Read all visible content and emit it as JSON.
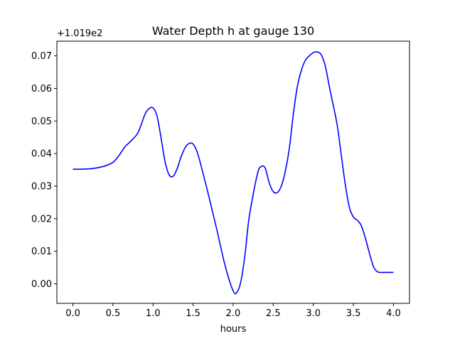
{
  "chart_data": {
    "type": "line",
    "title": "Water Depth h at gauge 130",
    "xlabel": "hours",
    "ylabel": "",
    "offset_text": "+1.019e2",
    "xlim": [
      -0.2,
      4.2
    ],
    "ylim": [
      -0.006,
      0.0745
    ],
    "x_ticks": [
      0.0,
      0.5,
      1.0,
      1.5,
      2.0,
      2.5,
      3.0,
      3.5,
      4.0
    ],
    "x_tick_labels": [
      "0.0",
      "0.5",
      "1.0",
      "1.5",
      "2.0",
      "2.5",
      "3.0",
      "3.5",
      "4.0"
    ],
    "y_ticks": [
      0.0,
      0.01,
      0.02,
      0.03,
      0.04,
      0.05,
      0.06,
      0.07
    ],
    "y_tick_labels": [
      "0.00",
      "0.01",
      "0.02",
      "0.03",
      "0.04",
      "0.05",
      "0.06",
      "0.07"
    ],
    "grid": false,
    "series": [
      {
        "color": "#0000ff",
        "x": [
          0.0,
          0.1,
          0.2,
          0.3,
          0.4,
          0.5,
          0.55,
          0.6,
          0.65,
          0.7,
          0.8,
          0.85,
          0.9,
          0.95,
          1.0,
          1.05,
          1.1,
          1.15,
          1.2,
          1.25,
          1.3,
          1.35,
          1.4,
          1.45,
          1.5,
          1.55,
          1.6,
          1.7,
          1.8,
          1.9,
          2.0,
          2.05,
          2.1,
          2.15,
          2.2,
          2.3,
          2.35,
          2.4,
          2.45,
          2.5,
          2.55,
          2.6,
          2.65,
          2.7,
          2.75,
          2.8,
          2.85,
          2.9,
          2.95,
          3.0,
          3.05,
          3.1,
          3.15,
          3.2,
          3.25,
          3.3,
          3.35,
          3.4,
          3.45,
          3.5,
          3.55,
          3.6,
          3.65,
          3.7,
          3.75,
          3.8,
          3.85,
          3.9,
          3.95,
          4.0
        ],
        "y": [
          0.0352,
          0.0352,
          0.0353,
          0.0356,
          0.0362,
          0.0373,
          0.0386,
          0.0403,
          0.0421,
          0.0433,
          0.0459,
          0.0487,
          0.0521,
          0.0538,
          0.054,
          0.0515,
          0.0448,
          0.0375,
          0.0335,
          0.033,
          0.0353,
          0.039,
          0.0418,
          0.0431,
          0.0429,
          0.0405,
          0.0362,
          0.0265,
          0.0162,
          0.0055,
          -0.0022,
          -0.0025,
          0.0012,
          0.0095,
          0.0205,
          0.0335,
          0.036,
          0.0355,
          0.031,
          0.0283,
          0.028,
          0.03,
          0.0345,
          0.0415,
          0.052,
          0.0605,
          0.0655,
          0.0686,
          0.07,
          0.071,
          0.0712,
          0.0703,
          0.0668,
          0.0605,
          0.0547,
          0.0484,
          0.0393,
          0.0303,
          0.0235,
          0.0205,
          0.0195,
          0.0178,
          0.014,
          0.0094,
          0.0053,
          0.0037,
          0.0035,
          0.0035,
          0.0035,
          0.0035
        ]
      }
    ]
  }
}
